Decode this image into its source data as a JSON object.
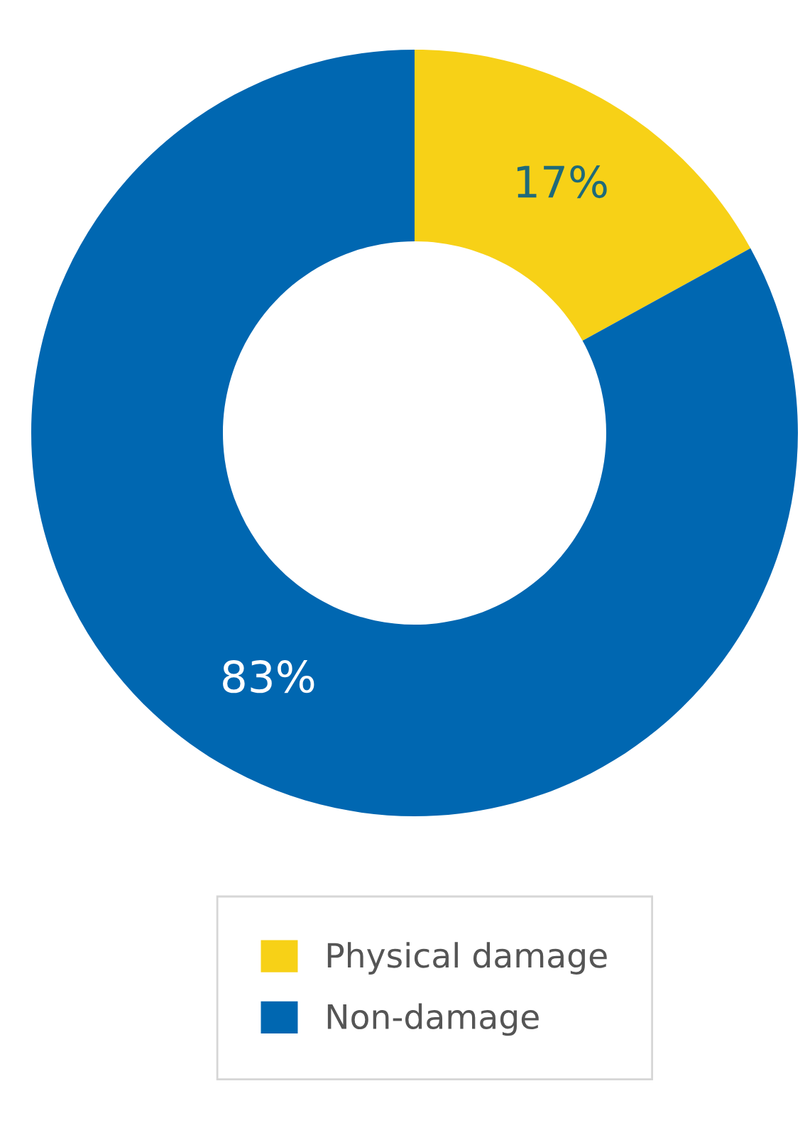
{
  "chart_data": {
    "type": "donut",
    "categories": [
      "Physical damage",
      "Non-damage"
    ],
    "values": [
      17,
      83
    ],
    "colors": [
      "#f7d117",
      "#0067b1"
    ],
    "value_labels": [
      "17%",
      "83%"
    ],
    "legend": "bottom"
  }
}
